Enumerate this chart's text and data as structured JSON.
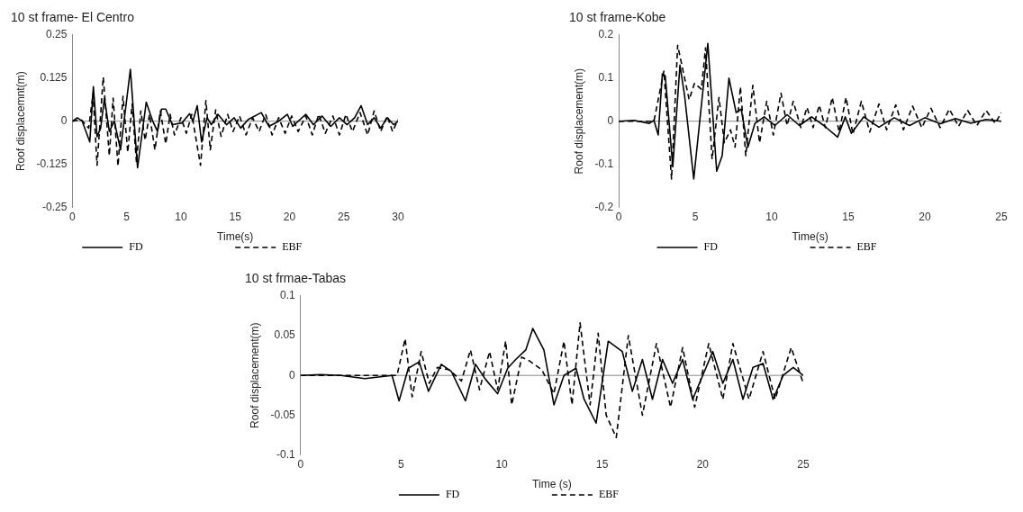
{
  "chart_data": [
    {
      "type": "line",
      "title": "10 st frame- El Centro",
      "xlabel": "Time(s)",
      "ylabel": "Roof displacemnt(m)",
      "xlim": [
        0,
        30
      ],
      "xticks": [
        0,
        5,
        10,
        15,
        20,
        25,
        30
      ],
      "ylim": [
        -0.25,
        0.25
      ],
      "yticks": [
        -0.25,
        -0.125,
        0,
        0.125,
        0.25
      ],
      "ref_lines": [
        {
          "axis": "y",
          "value": 0
        }
      ],
      "grid": false,
      "legend": "bottom",
      "marker": "none",
      "series": [
        {
          "name": "FD",
          "color": "#000000",
          "line_style": "solid",
          "x": [
            0,
            0.45,
            0.9,
            1.25,
            1.6,
            1.93,
            2.27,
            2.6,
            2.95,
            3.4,
            3.86,
            4.43,
            5.34,
            6.0,
            6.8,
            7.4,
            7.84,
            8.2,
            8.6,
            9.2,
            10.1,
            10.8,
            11.1,
            11.5,
            11.9,
            12.4,
            12.8,
            13.4,
            14.2,
            14.9,
            15.5,
            16.2,
            17.4,
            18.1,
            19,
            19.8,
            20.3,
            21.5,
            22.2,
            23,
            23.8,
            24.6,
            25.3,
            26,
            26.6,
            27.2,
            27.8,
            28.4,
            29,
            29.6,
            30
          ],
          "values": [
            0,
            0.01,
            0,
            -0.03,
            -0.06,
            0.1,
            -0.045,
            -0.02,
            0.067,
            -0.03,
            0,
            -0.083,
            0.15,
            -0.135,
            0.055,
            0,
            -0.03,
            0.035,
            0.035,
            -0.01,
            -0.005,
            0.022,
            0,
            0.045,
            -0.06,
            0.01,
            -0.01,
            0.02,
            -0.01,
            0.01,
            -0.02,
            0.005,
            0.025,
            -0.015,
            0,
            0.02,
            -0.015,
            0.02,
            -0.01,
            0.015,
            -0.015,
            0.01,
            -0.01,
            0.01,
            0.045,
            -0.01,
            0.01,
            -0.02,
            0.01,
            -0.01,
            0
          ]
        },
        {
          "name": "EBF",
          "color": "#000000",
          "line_style": "dashed",
          "x": [
            0,
            0.8,
            1.5,
            1.9,
            2.27,
            2.84,
            3.4,
            3.75,
            4.2,
            4.66,
            5.1,
            5.5,
            5.9,
            6.3,
            6.7,
            7.1,
            7.6,
            8.1,
            8.6,
            9.0,
            9.4,
            10,
            10.5,
            11,
            11.8,
            12.3,
            12.7,
            13.2,
            13.7,
            14.3,
            14.8,
            15.4,
            16,
            16.6,
            17.2,
            17.8,
            18.4,
            19,
            19.6,
            20.2,
            20.8,
            21.5,
            22.1,
            22.7,
            23.3,
            24,
            24.6,
            25.2,
            25.8,
            26.5,
            27.2,
            27.8,
            28.4,
            29,
            29.5,
            30
          ],
          "values": [
            0,
            0.005,
            -0.02,
            0.08,
            -0.128,
            0.128,
            -0.1,
            0.067,
            -0.13,
            0.072,
            -0.09,
            0.05,
            -0.12,
            0.03,
            -0.055,
            0.02,
            -0.083,
            0.03,
            -0.066,
            0.02,
            -0.04,
            0.01,
            -0.035,
            0.02,
            -0.128,
            0.06,
            -0.083,
            0.033,
            -0.044,
            0.02,
            -0.03,
            0.015,
            -0.04,
            0.01,
            -0.03,
            0.02,
            -0.04,
            0.01,
            -0.035,
            0.015,
            -0.03,
            0.015,
            -0.04,
            0.02,
            -0.035,
            0.015,
            -0.04,
            0.02,
            -0.03,
            0.025,
            -0.04,
            0.03,
            -0.03,
            0.015,
            -0.03,
            0.005
          ]
        }
      ]
    },
    {
      "type": "line",
      "title": "10 st frame-Kobe",
      "xlabel": "Time(s)",
      "ylabel": "Roof displacement(m)",
      "xlim": [
        0,
        25
      ],
      "xticks": [
        0,
        5,
        10,
        15,
        20,
        25
      ],
      "ylim": [
        -0.2,
        0.2
      ],
      "yticks": [
        -0.2,
        -0.1,
        0,
        0.1,
        0.2
      ],
      "ref_lines": [
        {
          "axis": "y",
          "value": 0
        }
      ],
      "grid": false,
      "legend": "bottom",
      "marker": "none",
      "series": [
        {
          "name": "FD",
          "color": "#000000",
          "line_style": "solid",
          "x": [
            0,
            1,
            2,
            2.3,
            2.58,
            2.85,
            3.04,
            3.53,
            4.0,
            4.3,
            4.9,
            5.82,
            6.4,
            6.76,
            7.2,
            7.67,
            8.0,
            8.44,
            8.9,
            9.5,
            10.2,
            11,
            11.8,
            12.6,
            13.4,
            14.3,
            14.8,
            15.2,
            16,
            17,
            18,
            19,
            20,
            21,
            22,
            23,
            24,
            25
          ],
          "values": [
            0,
            0.002,
            -0.005,
            0.002,
            -0.032,
            0.11,
            0.105,
            -0.106,
            0.13,
            0.06,
            -0.134,
            0.18,
            -0.116,
            -0.08,
            0.1,
            0.02,
            0.028,
            -0.06,
            -0.005,
            0.01,
            -0.01,
            0.015,
            -0.01,
            0.01,
            -0.01,
            -0.037,
            0.01,
            -0.028,
            0.01,
            -0.014,
            0.008,
            -0.01,
            0.008,
            -0.006,
            0.006,
            -0.005,
            0.004,
            0
          ]
        },
        {
          "name": "EBF",
          "color": "#000000",
          "line_style": "dashed",
          "x": [
            0,
            2.3,
            2.95,
            3.45,
            3.85,
            4.6,
            4.95,
            5.4,
            5.67,
            6.1,
            6.55,
            6.9,
            7.3,
            7.6,
            7.95,
            8.3,
            8.76,
            9.2,
            9.67,
            10.1,
            10.6,
            11.0,
            11.4,
            11.9,
            12.3,
            12.7,
            13.1,
            13.5,
            13.95,
            14.4,
            14.85,
            15.3,
            15.85,
            16.4,
            17,
            17.5,
            18.1,
            18.6,
            19.2,
            19.8,
            20.4,
            21,
            21.6,
            22.2,
            22.8,
            23.4,
            24,
            24.6,
            25
          ],
          "values": [
            0,
            0,
            0.116,
            -0.134,
            0.176,
            0.05,
            0.088,
            0.074,
            0.17,
            -0.088,
            0.055,
            -0.05,
            -0.02,
            -0.06,
            0.08,
            -0.08,
            0.083,
            -0.05,
            0.046,
            -0.032,
            0.065,
            -0.01,
            0.046,
            -0.015,
            0.032,
            -0.015,
            0.037,
            -0.015,
            0.055,
            -0.025,
            0.055,
            -0.03,
            0.046,
            -0.025,
            0.04,
            -0.02,
            0.038,
            -0.02,
            0.035,
            -0.015,
            0.03,
            -0.015,
            0.028,
            -0.012,
            0.025,
            -0.01,
            0.025,
            -0.005,
            0.02
          ]
        }
      ]
    },
    {
      "type": "line",
      "title": "10 st frmae-Tabas",
      "xlabel": "Time (s)",
      "ylabel": "Roof displacement(m)",
      "xlim": [
        0,
        25
      ],
      "xticks": [
        0,
        5,
        10,
        15,
        20,
        25
      ],
      "ylim": [
        -0.1,
        0.1
      ],
      "yticks": [
        -0.1,
        -0.05,
        0,
        0.05,
        0.1
      ],
      "ref_lines": [
        {
          "axis": "y",
          "value": 0
        }
      ],
      "grid": false,
      "legend": "bottom",
      "marker": "none",
      "series": [
        {
          "name": "FD",
          "color": "#000000",
          "line_style": "solid",
          "x": [
            0,
            1,
            2,
            3.2,
            4.55,
            4.9,
            5.36,
            5.9,
            6.36,
            7,
            7.5,
            8.2,
            8.7,
            9.2,
            9.8,
            10.3,
            10.7,
            11.2,
            11.55,
            12.1,
            12.6,
            13.1,
            13.7,
            14.1,
            14.7,
            15.3,
            16,
            16.5,
            17,
            17.5,
            18,
            18.5,
            19,
            19.5,
            20,
            20.5,
            21,
            21.5,
            22,
            22.5,
            23,
            23.5,
            24,
            24.5,
            25
          ],
          "values": [
            0,
            0.001,
            0,
            -0.004,
            0,
            -0.032,
            0.009,
            0.017,
            -0.02,
            0.014,
            0.005,
            -0.032,
            0.014,
            -0.005,
            -0.023,
            0.009,
            0.02,
            0.032,
            0.059,
            0.032,
            -0.037,
            0,
            0.009,
            -0.03,
            -0.06,
            0.043,
            0.03,
            -0.02,
            0.02,
            -0.03,
            0.02,
            -0.01,
            0.02,
            -0.03,
            0,
            0.03,
            -0.01,
            0.02,
            -0.03,
            0.01,
            0.015,
            -0.03,
            0,
            0.01,
            0
          ]
        },
        {
          "name": "EBF",
          "color": "#000000",
          "line_style": "dashed",
          "x": [
            0,
            2,
            4.8,
            5.2,
            5.55,
            6.0,
            6.4,
            6.8,
            7.4,
            8.0,
            8.45,
            8.9,
            9.4,
            9.8,
            10.2,
            10.5,
            11,
            11.4,
            12,
            12.6,
            13.1,
            13.5,
            13.9,
            14.4,
            14.8,
            15.2,
            15.7,
            16.3,
            17,
            17.7,
            18.4,
            19,
            19.6,
            20.3,
            21,
            21.5,
            22.3,
            23,
            23.6,
            24.4,
            25
          ],
          "values": [
            0,
            0,
            0,
            0.046,
            -0.027,
            0.03,
            -0.01,
            0.01,
            0.007,
            -0.007,
            0.032,
            -0.018,
            0.03,
            -0.018,
            0.043,
            -0.037,
            0.023,
            0.018,
            0.007,
            -0.023,
            0.043,
            -0.037,
            0.066,
            -0.037,
            0.053,
            -0.05,
            -0.078,
            0.05,
            -0.05,
            0.04,
            -0.04,
            0.035,
            -0.04,
            0.04,
            -0.03,
            0.04,
            -0.03,
            0.03,
            -0.03,
            0.035,
            -0.01
          ]
        }
      ]
    }
  ]
}
